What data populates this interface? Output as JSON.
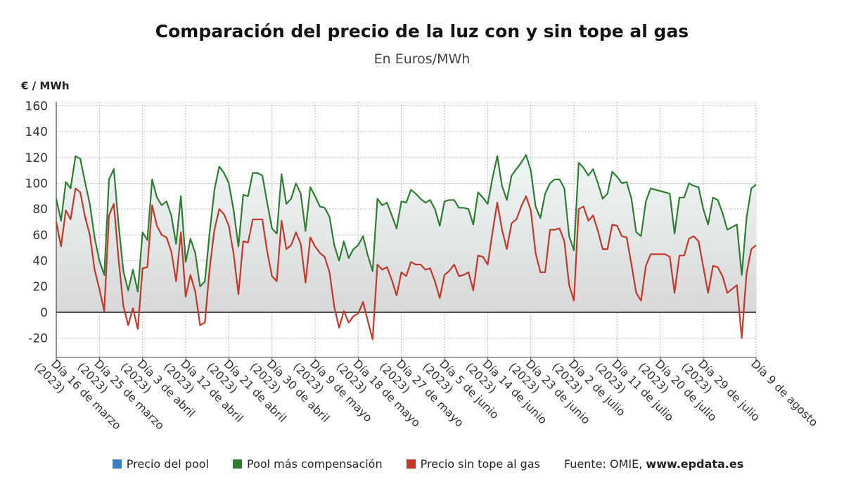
{
  "chart_data": {
    "type": "line",
    "title": "Comparación del precio de la luz con y sin tope al gas",
    "subtitle": "En Euros/MWh",
    "ylabel": "€ / MWh",
    "ylim": [
      -35,
      163
    ],
    "yticks": [
      -20,
      0,
      20,
      40,
      60,
      80,
      100,
      120,
      140,
      160
    ],
    "grid": true,
    "legend_position": "bottom",
    "x_start": "2023-03-16",
    "x_end": "2023-08-09",
    "x_tick_labels": [
      [
        "Día 16 de marzo",
        "(2023)"
      ],
      [
        "Día 25 de marzo",
        "(2023)"
      ],
      [
        "Día 3 de abril",
        "(2023)"
      ],
      [
        "Día 12 de abril",
        "(2023)"
      ],
      [
        "Día 21 de abril",
        "(2023)"
      ],
      [
        "Día 30 de abril",
        "(2023)"
      ],
      [
        "Día 9 de mayo",
        "(2023)"
      ],
      [
        "Día 18 de mayo",
        "(2023)"
      ],
      [
        "Día 27 de mayo",
        "(2023)"
      ],
      [
        "Día 5 de junio",
        "(2023)"
      ],
      [
        "Día 14 de junio",
        "(2023)"
      ],
      [
        "Día 23 de junio",
        "(2023)"
      ],
      [
        "Día 2 de julio",
        "(2023)"
      ],
      [
        "Día 11 de julio",
        "(2023)"
      ],
      [
        "Día 20 de julio",
        "(2023)"
      ],
      [
        "Día 29 de julio",
        "(2023)"
      ],
      [
        "Día 9 de agosto",
        ""
      ]
    ],
    "series": [
      {
        "name": "Precio del pool",
        "color": "#3a7fc1",
        "values": []
      },
      {
        "name": "Pool más compensación",
        "color": "#2e7d32",
        "values": [
          88,
          71,
          101,
          96,
          121,
          119,
          101,
          84,
          58,
          40,
          29,
          103,
          111,
          68,
          32,
          17,
          33,
          16,
          62,
          56,
          103,
          89,
          83,
          86,
          75,
          53,
          90,
          39,
          57,
          46,
          20,
          24,
          62,
          95,
          113,
          108,
          100,
          79,
          51,
          91,
          90,
          108,
          108,
          106,
          85,
          65,
          61,
          107,
          84,
          88,
          100,
          92,
          63,
          97,
          90,
          82,
          81,
          74,
          52,
          40,
          55,
          42,
          49,
          52,
          59,
          44,
          32,
          88,
          83,
          85,
          75,
          65,
          86,
          85,
          95,
          92,
          88,
          85,
          87,
          80,
          67,
          86,
          87,
          87,
          81,
          81,
          80,
          68,
          93,
          89,
          84,
          104,
          121,
          98,
          87,
          106,
          111,
          116,
          122,
          110,
          82,
          73,
          92,
          100,
          103,
          103,
          96,
          59,
          48,
          116,
          112,
          106,
          111,
          100,
          88,
          92,
          109,
          105,
          100,
          101,
          88,
          62,
          59,
          86,
          96,
          95,
          94,
          93,
          92,
          61,
          89,
          89,
          100,
          98,
          97,
          80,
          68,
          89,
          87,
          77,
          64,
          66,
          68,
          29,
          73,
          96,
          99
        ]
      },
      {
        "name": "Precio sin tope al gas",
        "color": "#c0392b",
        "values": [
          70,
          51,
          79,
          72,
          96,
          93,
          74,
          60,
          33,
          18,
          1,
          75,
          84,
          41,
          5,
          -10,
          3,
          -13,
          34,
          35,
          83,
          67,
          60,
          58,
          47,
          24,
          62,
          12,
          29,
          16,
          -10,
          -8,
          34,
          64,
          80,
          76,
          67,
          45,
          14,
          55,
          54,
          72,
          72,
          72,
          47,
          28,
          24,
          71,
          49,
          52,
          62,
          53,
          23,
          58,
          51,
          46,
          43,
          31,
          4,
          -12,
          1,
          -8,
          -3,
          -1,
          8,
          -7,
          -21,
          37,
          33,
          35,
          25,
          13,
          31,
          28,
          39,
          37,
          37,
          33,
          34,
          24,
          11,
          29,
          32,
          37,
          28,
          29,
          31,
          17,
          44,
          43,
          37,
          62,
          85,
          64,
          49,
          69,
          72,
          82,
          90,
          79,
          46,
          31,
          31,
          64,
          64,
          65,
          55,
          21,
          9,
          80,
          82,
          71,
          75,
          63,
          49,
          49,
          68,
          67,
          59,
          58,
          37,
          15,
          9,
          36,
          45,
          45,
          45,
          45,
          43,
          15,
          44,
          44,
          57,
          59,
          55,
          35,
          15,
          36,
          35,
          28,
          15,
          18,
          21,
          -20,
          30,
          49,
          52
        ]
      }
    ]
  },
  "legend": {
    "items": [
      {
        "label": "Precio del pool",
        "color": "#3a7fc1"
      },
      {
        "label": "Pool más compensación",
        "color": "#2e7d32"
      },
      {
        "label": "Precio sin tope al gas",
        "color": "#c0392b"
      }
    ],
    "source_prefix": "Fuente: OMIE, ",
    "source_site": "www.epdata.es"
  },
  "colors": {
    "area_top_fill": "#eaf4f4",
    "area_bottom_fill": "#dcdcdc",
    "grid": "#b8b8b8",
    "zero_line": "#333333"
  }
}
